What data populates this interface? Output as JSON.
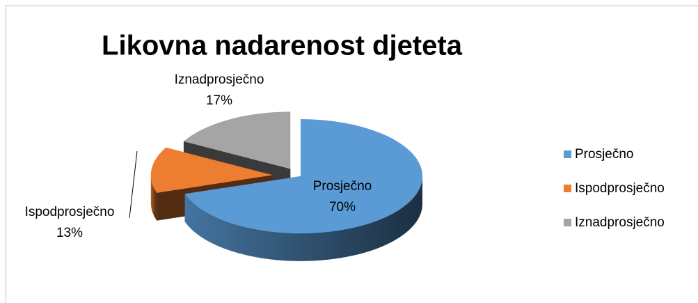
{
  "chart_data": {
    "type": "pie",
    "title": "Likovna nadarenost djeteta",
    "categories": [
      "Prosječno",
      "Ispodprosječno",
      "Iznadprosječno"
    ],
    "values": [
      70,
      13,
      17
    ],
    "value_labels": [
      "70%",
      "13%",
      "17%"
    ],
    "colors": [
      "#5b9bd5",
      "#ed7d31",
      "#a5a5a5"
    ],
    "legend": "right"
  }
}
